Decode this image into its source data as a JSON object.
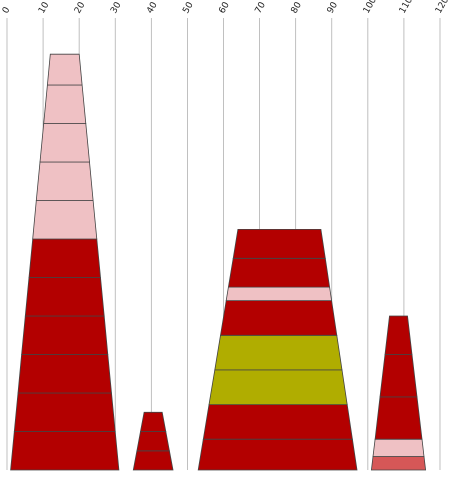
{
  "chart_data": {
    "type": "bar",
    "subtype": "stacked trapezoid columns",
    "title": "",
    "xlabel": "",
    "ylabel": "",
    "x_axis": {
      "position": "top",
      "xlim": [
        0,
        120
      ],
      "ticks": [
        0,
        10,
        20,
        30,
        40,
        50,
        60,
        70,
        80,
        90,
        100,
        110,
        120
      ],
      "tick_label_rotation": "-60deg"
    },
    "grid": {
      "vertical": true,
      "horizontal": false
    },
    "colors": {
      "dark_red": "#b30000",
      "light_pink": "#efc1c4",
      "olive": "#b0ad00",
      "salmon": "#d65757"
    },
    "columns": [
      {
        "bottom_x": [
          1,
          31
        ],
        "top_x": [
          12,
          20
        ],
        "segments_bottom_to_top": [
          {
            "color": "dark_red",
            "height": 1
          },
          {
            "color": "dark_red",
            "height": 1
          },
          {
            "color": "dark_red",
            "height": 1
          },
          {
            "color": "dark_red",
            "height": 1
          },
          {
            "color": "dark_red",
            "height": 1
          },
          {
            "color": "dark_red",
            "height": 1
          },
          {
            "color": "light_pink",
            "height": 1
          },
          {
            "color": "light_pink",
            "height": 1
          },
          {
            "color": "light_pink",
            "height": 1
          },
          {
            "color": "light_pink",
            "height": 1
          },
          {
            "color": "light_pink",
            "height": 0.8
          }
        ]
      },
      {
        "bottom_x": [
          35,
          46
        ],
        "top_x": [
          38,
          43
        ],
        "segments_bottom_to_top": [
          {
            "color": "dark_red",
            "height": 0.5
          },
          {
            "color": "dark_red",
            "height": 0.5
          },
          {
            "color": "dark_red",
            "height": 0.5
          }
        ]
      },
      {
        "bottom_x": [
          53,
          97
        ],
        "top_x": [
          64,
          87
        ],
        "segments_bottom_to_top": [
          {
            "color": "dark_red",
            "height": 0.8
          },
          {
            "color": "dark_red",
            "height": 0.9
          },
          {
            "color": "olive",
            "height": 0.9
          },
          {
            "color": "olive",
            "height": 0.9
          },
          {
            "color": "dark_red",
            "height": 0.9
          },
          {
            "color": "light_pink",
            "height": 0.35
          },
          {
            "color": "dark_red",
            "height": 0.75
          },
          {
            "color": "dark_red",
            "height": 0.75
          }
        ]
      },
      {
        "bottom_x": [
          101,
          116
        ],
        "top_x": [
          106,
          111
        ],
        "segments_bottom_to_top": [
          {
            "color": "salmon",
            "height": 0.35
          },
          {
            "color": "light_pink",
            "height": 0.45
          },
          {
            "color": "dark_red",
            "height": 1.1
          },
          {
            "color": "dark_red",
            "height": 1.1
          },
          {
            "color": "dark_red",
            "height": 1.0
          }
        ]
      }
    ]
  }
}
